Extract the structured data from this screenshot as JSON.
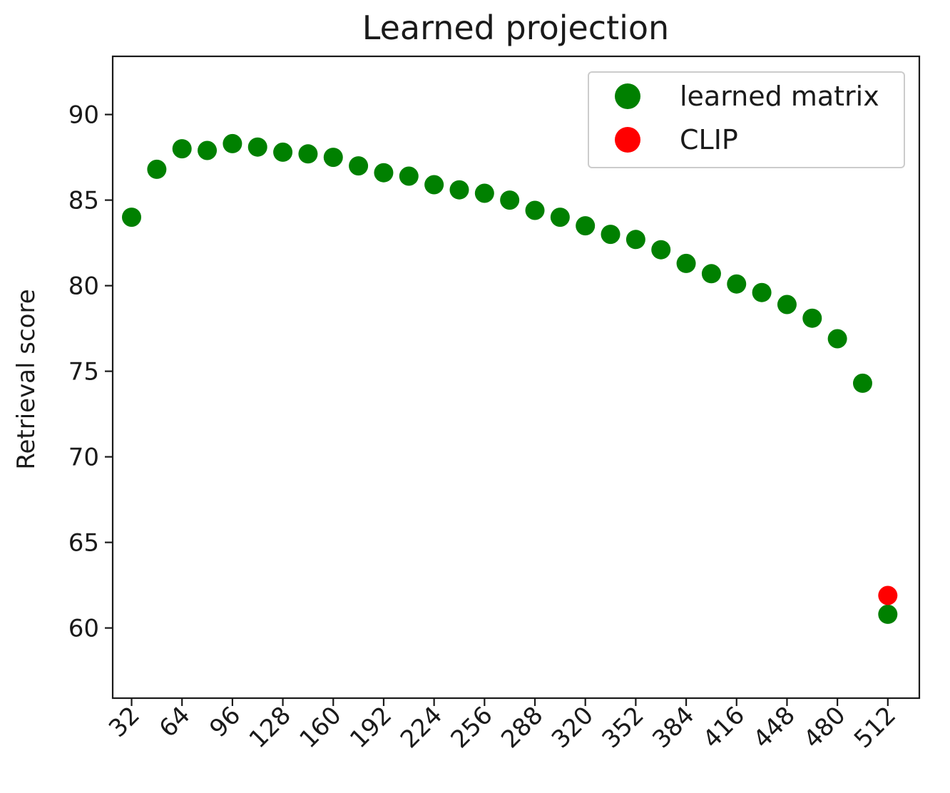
{
  "chart_data": {
    "type": "scatter",
    "title": "Learned projection",
    "xlabel": "",
    "ylabel": "Retrieval score",
    "xlim": [
      20,
      532
    ],
    "ylim": [
      55.9,
      93.4
    ],
    "x_ticks": [
      32,
      64,
      96,
      128,
      160,
      192,
      224,
      256,
      288,
      320,
      352,
      384,
      416,
      448,
      480,
      512
    ],
    "y_ticks": [
      60,
      65,
      70,
      75,
      80,
      85,
      90
    ],
    "grid": false,
    "legend_position": "top-right",
    "series": [
      {
        "name": "learned matrix",
        "color": "#008000",
        "points": [
          {
            "x": 32,
            "y": 84.0
          },
          {
            "x": 48,
            "y": 86.8
          },
          {
            "x": 64,
            "y": 88.0
          },
          {
            "x": 80,
            "y": 87.9
          },
          {
            "x": 96,
            "y": 88.3
          },
          {
            "x": 112,
            "y": 88.1
          },
          {
            "x": 128,
            "y": 87.8
          },
          {
            "x": 144,
            "y": 87.7
          },
          {
            "x": 160,
            "y": 87.5
          },
          {
            "x": 176,
            "y": 87.0
          },
          {
            "x": 192,
            "y": 86.6
          },
          {
            "x": 208,
            "y": 86.4
          },
          {
            "x": 224,
            "y": 85.9
          },
          {
            "x": 240,
            "y": 85.6
          },
          {
            "x": 256,
            "y": 85.4
          },
          {
            "x": 272,
            "y": 85.0
          },
          {
            "x": 288,
            "y": 84.4
          },
          {
            "x": 304,
            "y": 84.0
          },
          {
            "x": 320,
            "y": 83.5
          },
          {
            "x": 336,
            "y": 83.0
          },
          {
            "x": 352,
            "y": 82.7
          },
          {
            "x": 368,
            "y": 82.1
          },
          {
            "x": 384,
            "y": 81.3
          },
          {
            "x": 400,
            "y": 80.7
          },
          {
            "x": 416,
            "y": 80.1
          },
          {
            "x": 432,
            "y": 79.6
          },
          {
            "x": 448,
            "y": 78.9
          },
          {
            "x": 464,
            "y": 78.1
          },
          {
            "x": 480,
            "y": 76.9
          },
          {
            "x": 496,
            "y": 74.3
          },
          {
            "x": 512,
            "y": 60.8
          }
        ]
      },
      {
        "name": "CLIP",
        "color": "#ff0000",
        "points": [
          {
            "x": 512,
            "y": 61.9
          }
        ]
      }
    ]
  }
}
